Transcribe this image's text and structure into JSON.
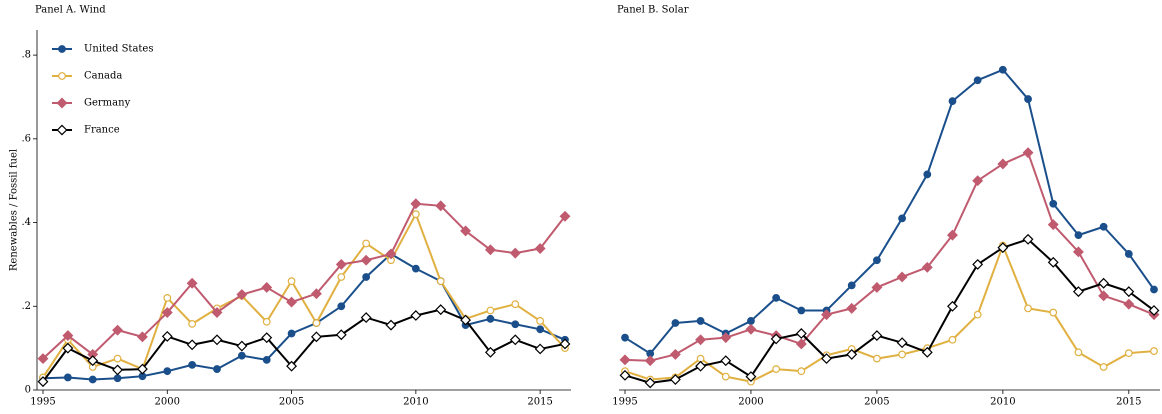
{
  "chart_data": [
    {
      "type": "line",
      "title": "Panel A. Wind",
      "ylabel": "Renewables / Fossil fuel",
      "x": [
        1995,
        1996,
        1997,
        1998,
        1999,
        2000,
        2001,
        2002,
        2003,
        2004,
        2005,
        2006,
        2007,
        2008,
        2009,
        2010,
        2011,
        2012,
        2013,
        2014,
        2015,
        2016
      ],
      "xlim": [
        1995,
        2016
      ],
      "xticks": [
        1995,
        2000,
        2005,
        2010,
        2015
      ],
      "ylim": [
        0,
        0.86
      ],
      "yticks": [
        0,
        {
          "value": 0.2,
          "label": ".2"
        },
        {
          "value": 0.4,
          "label": ".4"
        },
        {
          "value": 0.6,
          "label": ".6"
        },
        {
          "value": 0.8,
          "label": ".8"
        }
      ],
      "legend": "upper left",
      "series": [
        {
          "name": "United States",
          "color": "#1a4f8b",
          "marker": "circle",
          "values": [
            0.028,
            0.03,
            0.025,
            0.028,
            0.033,
            0.045,
            0.06,
            0.05,
            0.082,
            0.072,
            0.135,
            0.16,
            0.2,
            0.27,
            0.325,
            0.29,
            0.26,
            0.155,
            0.17,
            0.157,
            0.145,
            0.12
          ]
        },
        {
          "name": "Canada",
          "color": "#e0b040",
          "marker": "circle-open",
          "values": [
            0.03,
            0.12,
            0.055,
            0.075,
            0.05,
            0.22,
            0.158,
            0.195,
            0.225,
            0.163,
            0.26,
            0.16,
            0.27,
            0.35,
            0.31,
            0.42,
            0.26,
            0.17,
            0.19,
            0.205,
            0.165,
            0.1
          ]
        },
        {
          "name": "Germany",
          "color": "#c05a6e",
          "marker": "diamond",
          "values": [
            0.075,
            0.13,
            0.085,
            0.143,
            0.127,
            0.185,
            0.255,
            0.185,
            0.228,
            0.245,
            0.21,
            0.23,
            0.3,
            0.31,
            0.325,
            0.445,
            0.44,
            0.38,
            0.335,
            0.327,
            0.338,
            0.415
          ]
        },
        {
          "name": "France",
          "color": "#000000",
          "marker": "diamond-open",
          "values": [
            0.02,
            0.1,
            0.07,
            0.048,
            0.05,
            0.128,
            0.108,
            0.12,
            0.105,
            0.125,
            0.057,
            0.127,
            0.132,
            0.173,
            0.155,
            0.178,
            0.192,
            0.167,
            0.09,
            0.12,
            0.098,
            0.11
          ]
        }
      ]
    },
    {
      "type": "line",
      "title": "Panel B. Solar",
      "x": [
        1995,
        1996,
        1997,
        1998,
        1999,
        2000,
        2001,
        2002,
        2003,
        2004,
        2005,
        2006,
        2007,
        2008,
        2009,
        2010,
        2011,
        2012,
        2013,
        2014,
        2015,
        2016
      ],
      "xlim": [
        1995,
        2016
      ],
      "xticks": [
        1995,
        2000,
        2005,
        2010,
        2015
      ],
      "ylim": [
        0,
        0.86
      ],
      "series": [
        {
          "color": "#1a4f8b",
          "marker": "circle",
          "values": [
            0.125,
            0.087,
            0.16,
            0.165,
            0.135,
            0.165,
            0.22,
            0.19,
            0.19,
            0.25,
            0.31,
            0.41,
            0.515,
            0.69,
            0.74,
            0.765,
            0.695,
            0.445,
            0.37,
            0.39,
            0.325,
            0.24
          ]
        },
        {
          "color": "#e0b040",
          "marker": "circle-open",
          "values": [
            0.045,
            0.025,
            0.03,
            0.075,
            0.032,
            0.02,
            0.05,
            0.045,
            0.083,
            0.098,
            0.075,
            0.085,
            0.1,
            0.12,
            0.18,
            0.345,
            0.195,
            0.185,
            0.09,
            0.055,
            0.088,
            0.093
          ]
        },
        {
          "color": "#c05a6e",
          "marker": "diamond",
          "values": [
            0.072,
            0.07,
            0.085,
            0.12,
            0.125,
            0.145,
            0.13,
            0.11,
            0.18,
            0.195,
            0.245,
            0.27,
            0.293,
            0.37,
            0.5,
            0.54,
            0.567,
            0.395,
            0.33,
            0.225,
            0.205,
            0.18
          ]
        },
        {
          "color": "#000000",
          "marker": "diamond-open",
          "values": [
            0.035,
            0.017,
            0.025,
            0.057,
            0.07,
            0.032,
            0.122,
            0.135,
            0.075,
            0.085,
            0.13,
            0.113,
            0.09,
            0.2,
            0.3,
            0.34,
            0.36,
            0.305,
            0.235,
            0.255,
            0.235,
            0.19
          ]
        }
      ]
    }
  ]
}
